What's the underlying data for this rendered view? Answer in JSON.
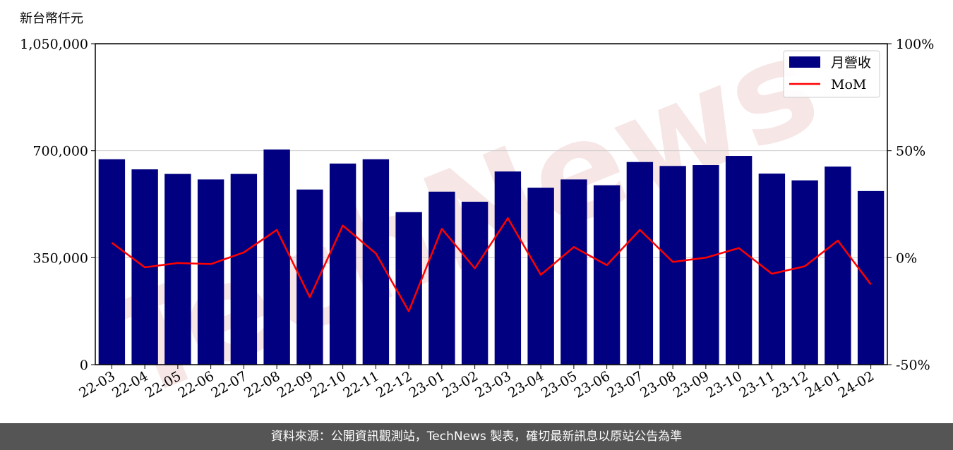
{
  "unit_label": "新台幣仟元",
  "watermark": "TechNews",
  "footer": "資料來源：公開資訊觀測站，TechNews 製表，確切最新訊息以原站公告為準",
  "colors": {
    "bar": "#000080",
    "line": "#ff0000",
    "watermark": "#f2d6d6",
    "footer_bg": "#555555"
  },
  "chart_data": {
    "type": "bar",
    "categories": [
      "22-03",
      "22-04",
      "22-05",
      "22-06",
      "22-07",
      "22-08",
      "22-09",
      "22-10",
      "22-11",
      "22-12",
      "23-01",
      "23-02",
      "23-03",
      "23-04",
      "23-05",
      "23-06",
      "23-07",
      "23-08",
      "23-09",
      "23-10",
      "23-11",
      "23-12",
      "24-01",
      "24-02"
    ],
    "series": [
      {
        "name": "月營收",
        "type": "bar",
        "axis": "left",
        "values": [
          672000,
          639000,
          624000,
          606000,
          624000,
          704000,
          573000,
          658000,
          672000,
          499000,
          566000,
          533000,
          632000,
          579000,
          606000,
          587000,
          663000,
          650000,
          653000,
          683000,
          625000,
          603000,
          648000,
          568000
        ]
      },
      {
        "name": "MoM",
        "type": "line",
        "axis": "right",
        "values": [
          7,
          -4.5,
          -2.5,
          -3,
          2.5,
          13,
          -18.5,
          15,
          2,
          -25,
          13.5,
          -5,
          18.5,
          -8,
          5,
          -3.5,
          13,
          -2,
          0,
          4.5,
          -7.5,
          -4,
          8,
          -12.5
        ]
      }
    ],
    "y_left": {
      "ylim": [
        0,
        1050000
      ],
      "ticks": [
        0,
        350000,
        700000,
        1050000
      ],
      "tick_labels": [
        "0",
        "350,000",
        "700,000",
        "1,050,000"
      ]
    },
    "y_right": {
      "ylim": [
        -50,
        100
      ],
      "ticks": [
        -50,
        0,
        50,
        100
      ],
      "tick_labels": [
        "-50%",
        "0%",
        "50%",
        "100%"
      ]
    },
    "grid": "horizontal",
    "legend_position": "top-right"
  }
}
